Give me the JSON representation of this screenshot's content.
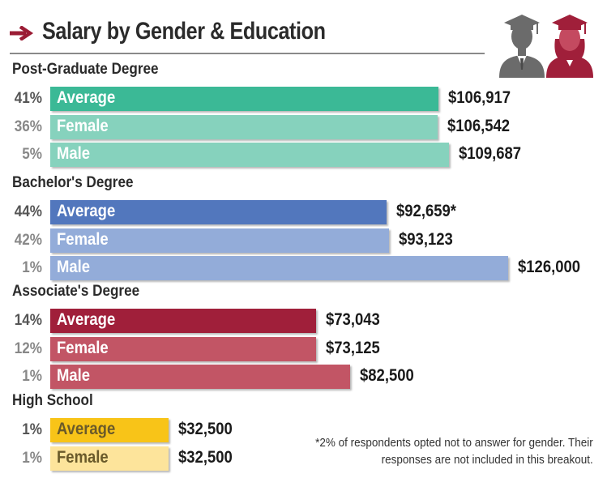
{
  "title": "Salary by Gender & Education",
  "footnote_lines": [
    "*2% of respondents opted not to answer for gender. Their",
    "responses are not included in this breakout."
  ],
  "icons": [
    "arrow-right-icon",
    "male-graduate-icon",
    "female-graduate-icon"
  ],
  "colors": {
    "post_graduate": {
      "average": "#3bb996",
      "light": "#86d2bd"
    },
    "bachelors": {
      "average": "#5277bd",
      "light": "#93acd9"
    },
    "associates": {
      "average": "#a01f3a",
      "light": "#c25565"
    },
    "high_school": {
      "average": "#f8c418",
      "light": "#fde49b"
    },
    "arrow": "#9b1c35",
    "female_icon": "#a01f3a",
    "male_icon": "#6b6b6b"
  },
  "chart_data": {
    "type": "bar",
    "orientation": "horizontal",
    "title": "Salary by Gender & Education",
    "xlim": [
      0,
      130000
    ],
    "groups": [
      {
        "key": "post_graduate",
        "label": "Post-Graduate Degree",
        "bars": [
          {
            "label": "Average",
            "share": "41%",
            "value": 106917,
            "value_label": "$106,917"
          },
          {
            "label": "Female",
            "share": "36%",
            "value": 106542,
            "value_label": "$106,542"
          },
          {
            "label": "Male",
            "share": "5%",
            "value": 109687,
            "value_label": "$109,687"
          }
        ]
      },
      {
        "key": "bachelors",
        "label": "Bachelor's Degree",
        "bars": [
          {
            "label": "Average",
            "share": "44%",
            "value": 92659,
            "value_label": "$92,659*"
          },
          {
            "label": "Female",
            "share": "42%",
            "value": 93123,
            "value_label": "$93,123"
          },
          {
            "label": "Male",
            "share": "1%",
            "value": 126000,
            "value_label": "$126,000"
          }
        ]
      },
      {
        "key": "associates",
        "label": "Associate's Degree",
        "bars": [
          {
            "label": "Average",
            "share": "14%",
            "value": 73043,
            "value_label": "$73,043"
          },
          {
            "label": "Female",
            "share": "12%",
            "value": 73125,
            "value_label": "$73,125"
          },
          {
            "label": "Male",
            "share": "1%",
            "value": 82500,
            "value_label": "$82,500"
          }
        ]
      },
      {
        "key": "high_school",
        "label": "High School",
        "bars": [
          {
            "label": "Average",
            "share": "1%",
            "value": 32500,
            "value_label": "$32,500"
          },
          {
            "label": "Female",
            "share": "1%",
            "value": 32500,
            "value_label": "$32,500"
          }
        ]
      }
    ]
  }
}
